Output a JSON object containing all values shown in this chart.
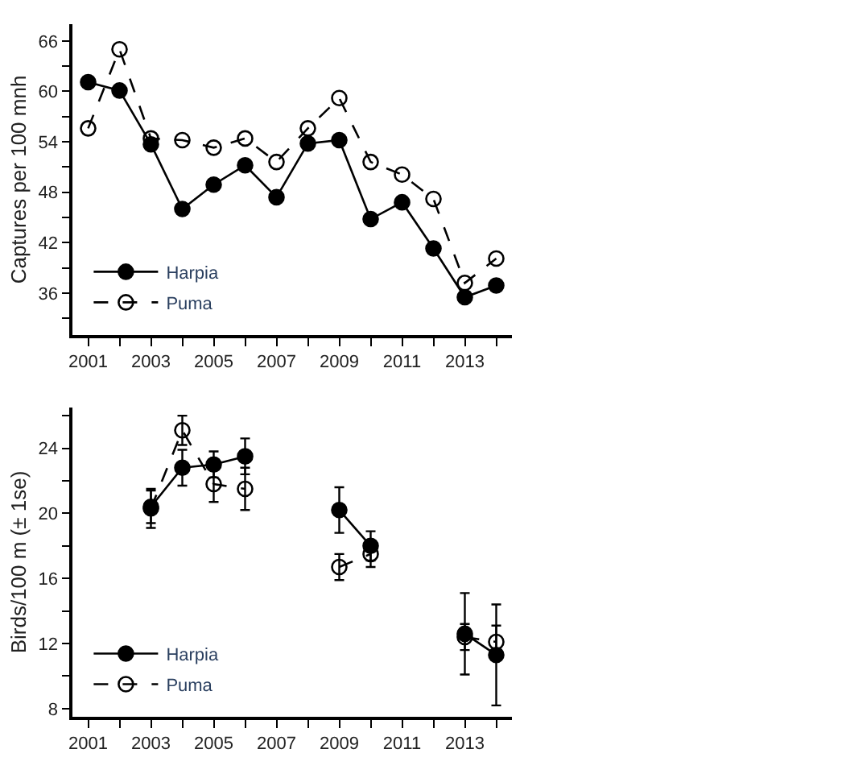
{
  "chart_data": [
    {
      "type": "line",
      "ylabel": "Captures per 100 mnh",
      "x": [
        2001,
        2002,
        2003,
        2004,
        2005,
        2006,
        2007,
        2008,
        2009,
        2010,
        2011,
        2012,
        2013,
        2014
      ],
      "xlim": [
        2000.5,
        2014.5
      ],
      "xticks": [
        2001,
        {
          "value": 2002,
          "label": null
        },
        2003,
        {
          "value": 2004,
          "label": null
        },
        2005,
        {
          "value": 2006,
          "label": null
        },
        2007,
        {
          "value": 2008,
          "label": null
        },
        2009,
        {
          "value": 2010,
          "label": null
        },
        2011,
        {
          "value": 2012,
          "label": null
        },
        2013,
        {
          "value": 2014,
          "label": null
        }
      ],
      "ylim": [
        31,
        68
      ],
      "yticks": [
        {
          "value": 33,
          "label": null
        },
        36,
        {
          "value": 39,
          "label": null
        },
        42,
        {
          "value": 45,
          "label": null
        },
        48,
        {
          "value": 51,
          "label": null
        },
        54,
        {
          "value": 57,
          "label": null
        },
        60,
        {
          "value": 63,
          "label": null
        },
        66
      ],
      "legend": "bottom left",
      "series": [
        {
          "name": "Harpia",
          "color": "#000000",
          "line_style": "solid",
          "marker": "circle",
          "values": [
            61.1,
            60.1,
            53.7,
            46.0,
            48.9,
            51.2,
            47.4,
            53.8,
            54.2,
            44.8,
            46.8,
            41.3,
            35.5,
            36.9
          ]
        },
        {
          "name": "Puma",
          "color": "#000000",
          "line_style": "dashed",
          "marker": "circle-open",
          "values": [
            55.6,
            65.0,
            54.4,
            54.2,
            53.3,
            54.4,
            51.6,
            55.6,
            59.2,
            51.6,
            50.1,
            47.2,
            37.2,
            40.1
          ]
        }
      ]
    },
    {
      "type": "line",
      "ylabel": "Birds/100 m (± 1se)",
      "x": [
        2003,
        2004,
        2005,
        2006,
        2009,
        2010,
        2013,
        2014
      ],
      "xlim": [
        2000.5,
        2014.5
      ],
      "xticks": [
        2001,
        {
          "value": 2002,
          "label": null
        },
        2003,
        {
          "value": 2004,
          "label": null
        },
        2005,
        {
          "value": 2006,
          "label": null
        },
        2007,
        {
          "value": 2008,
          "label": null
        },
        2009,
        {
          "value": 2010,
          "label": null
        },
        2011,
        {
          "value": 2012,
          "label": null
        },
        2013,
        {
          "value": 2014,
          "label": null
        }
      ],
      "ylim": [
        7.5,
        26.5
      ],
      "yticks": [
        8,
        {
          "value": 10,
          "label": null
        },
        12,
        {
          "value": 14,
          "label": null
        },
        16,
        {
          "value": 18,
          "label": null
        },
        20,
        {
          "value": 22,
          "label": null
        },
        24,
        {
          "value": 26,
          "label": null
        }
      ],
      "legend": "bottom left",
      "series": [
        {
          "name": "Harpia",
          "color": "#000000",
          "line_style": "solid",
          "marker": "circle",
          "values": [
            20.4,
            22.8,
            23.0,
            23.5,
            20.2,
            18.0,
            12.6,
            11.3
          ],
          "errors": [
            1.0,
            1.1,
            0.8,
            1.1,
            1.4,
            0.9,
            2.5,
            3.1
          ]
        },
        {
          "name": "Puma",
          "color": "#000000",
          "line_style": "dashed",
          "marker": "circle-open",
          "values": [
            20.3,
            25.1,
            21.8,
            21.5,
            16.7,
            17.5,
            12.4,
            12.1
          ],
          "errors": [
            1.2,
            0.9,
            1.1,
            1.3,
            0.8,
            0.8,
            0.8,
            1.0
          ]
        }
      ]
    }
  ]
}
